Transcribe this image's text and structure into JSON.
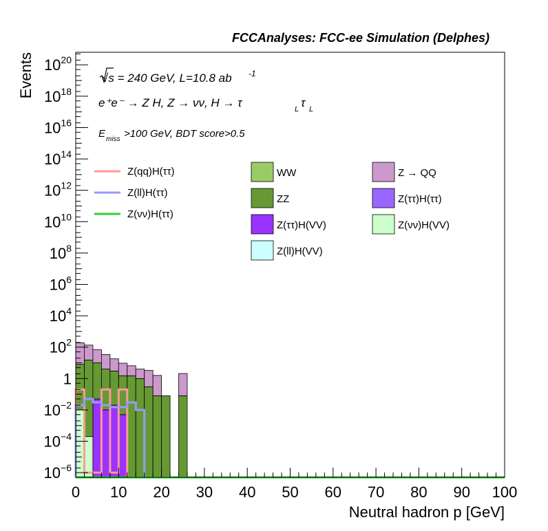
{
  "chart_data": {
    "type": "bar",
    "title": "FCCAnalyses: FCC-ee Simulation (Delphes)",
    "xlabel": "Neutral hadron p [GeV]",
    "ylabel": "Events",
    "xlim": [
      0,
      100
    ],
    "ylim_log10": [
      -6.3,
      20.8
    ],
    "log_y": true,
    "x_ticks": [
      "0",
      "10",
      "20",
      "30",
      "40",
      "50",
      "60",
      "70",
      "80",
      "90",
      "100"
    ],
    "y_tick_exponents": [
      -6,
      -4,
      -2,
      0,
      2,
      4,
      6,
      8,
      10,
      12,
      14,
      16,
      18,
      20
    ],
    "annotations": {
      "sqrt_s": "√s = 240 GeV, L=10.8 ab",
      "lumi_exp": "-1",
      "process": "e⁺e⁻ → Z H, Z → νν, H → τ",
      "tau_sub": "L",
      "cuts_E": "E",
      "cuts_sub": "miss",
      "cuts_rest": ">100 GeV, BDT score>0.5"
    },
    "bin_width": 2,
    "legend_placement": "top",
    "stack_series": [
      {
        "name": "Z(νν)H(VV)",
        "color": "#ccffcc",
        "bins": [
          [
            0,
            0.01
          ],
          [
            2,
            0.0002
          ]
        ]
      },
      {
        "name": "Z(ττ)H(VV)",
        "color": "#9933ff",
        "bins": [
          [
            4,
            0.05
          ],
          [
            6,
            0.01
          ],
          [
            8,
            0.02
          ],
          [
            10,
            0.005
          ]
        ]
      },
      {
        "name": "ZZ",
        "color": "#669933",
        "bins": [
          [
            0,
            8
          ],
          [
            2,
            15
          ],
          [
            4,
            10
          ],
          [
            6,
            4
          ],
          [
            8,
            3
          ],
          [
            10,
            1.5
          ],
          [
            12,
            1.5
          ],
          [
            14,
            1
          ],
          [
            16,
            0.3
          ],
          [
            18,
            0.08
          ],
          [
            20,
            0.08
          ],
          [
            24,
            0.08
          ]
        ]
      },
      {
        "name": "Z → QQ",
        "color": "#cc99cc",
        "bins": [
          [
            0,
            180
          ],
          [
            2,
            120
          ],
          [
            4,
            60
          ],
          [
            6,
            30
          ],
          [
            8,
            15
          ],
          [
            10,
            8
          ],
          [
            12,
            5
          ],
          [
            14,
            3
          ],
          [
            16,
            3
          ],
          [
            18,
            1.5
          ],
          [
            24,
            2
          ]
        ]
      }
    ],
    "line_series": [
      {
        "name": "Z(qq)H(ττ)",
        "color": "#ff9999",
        "bins": [
          [
            0,
            0.2
          ],
          [
            2,
            1e-06
          ],
          [
            4,
            1e-06
          ],
          [
            6,
            0.2
          ],
          [
            8,
            1e-06
          ],
          [
            10,
            0.2
          ]
        ]
      },
      {
        "name": "Z(ll)H(ττ)",
        "color": "#9999ff",
        "bins": [
          [
            0,
            0.02
          ],
          [
            2,
            0.05
          ],
          [
            4,
            0.03
          ],
          [
            6,
            0.02
          ],
          [
            8,
            0.015
          ],
          [
            10,
            0.015
          ],
          [
            12,
            0.03
          ],
          [
            14,
            0.01
          ]
        ]
      },
      {
        "name": "Z(νν)H(ττ)",
        "color": "#33cc33",
        "bins": []
      }
    ],
    "legend_lines": [
      {
        "label": "Z(qq)H(ττ)",
        "color": "#ff9999"
      },
      {
        "label": "Z(ll)H(ττ)",
        "color": "#9999ff"
      },
      {
        "label": "Z(νν)H(ττ)",
        "color": "#33cc33"
      }
    ],
    "legend_boxes": [
      {
        "label": "WW",
        "color": "#99cc66"
      },
      {
        "label": "Z → QQ",
        "color": "#cc99cc"
      },
      {
        "label": "ZZ",
        "color": "#669933"
      },
      {
        "label": "Z(ττ)H(ττ)",
        "color": "#9966ff"
      },
      {
        "label": "Z(ττ)H(VV)",
        "color": "#9933ff"
      },
      {
        "label": "Z(νν)H(VV)",
        "color": "#ccffcc"
      },
      {
        "label": "Z(ll)H(VV)",
        "color": "#ccffff"
      }
    ]
  }
}
